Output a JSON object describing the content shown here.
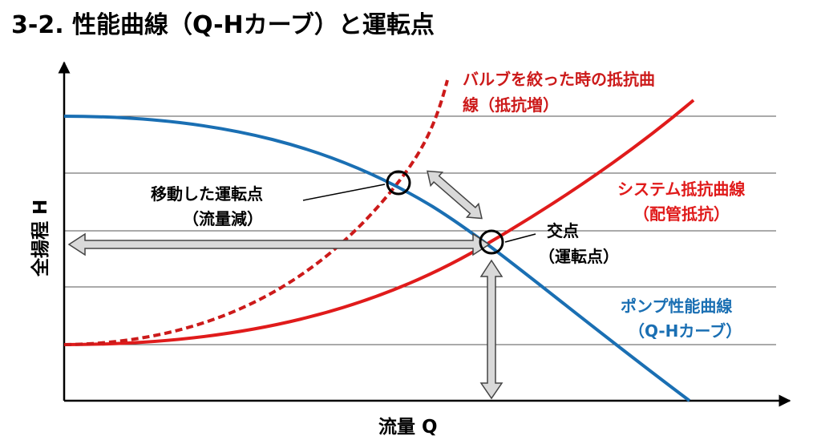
{
  "title": "3-2. 性能曲線（Q-Hカーブ）と運転点",
  "axes": {
    "x_label": "流量 Q",
    "y_label": "全揚程 H"
  },
  "curves": {
    "pump": {
      "line1": "ポンプ性能曲線",
      "line2": "（Q-Hカーブ）",
      "color": "#1a6fb3"
    },
    "system": {
      "line1": "システム抵抗曲線",
      "line2": "（配管抵抗）",
      "color": "#e01b1b"
    },
    "throttled": {
      "line1": "バルブを絞った時の抵抗曲",
      "line2": "線（抵抗増）",
      "color": "#cc1a1a"
    }
  },
  "points": {
    "operating": {
      "line1": "交点",
      "line2": "（運転点）"
    },
    "moved": {
      "line1": "移動した運転点",
      "line2": "（流量減）"
    }
  }
}
